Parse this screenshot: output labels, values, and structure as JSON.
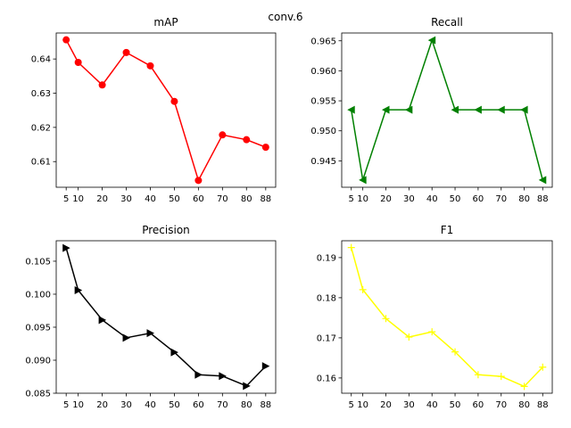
{
  "suptitle": "conv.6",
  "chart_data": [
    {
      "type": "line",
      "title": "mAP",
      "color": "#ff0000",
      "marker": "circle",
      "x": [
        5,
        10,
        20,
        30,
        40,
        50,
        60,
        70,
        80,
        88
      ],
      "values": [
        0.6456,
        0.639,
        0.6324,
        0.6419,
        0.638,
        0.6276,
        0.6045,
        0.6178,
        0.6164,
        0.6142
      ],
      "xticks": [
        5,
        10,
        20,
        30,
        40,
        50,
        60,
        70,
        80,
        88
      ],
      "xtick_labels": [
        "5",
        "10",
        "20",
        "30",
        "40",
        "50",
        "60",
        "70",
        "80",
        "88"
      ],
      "yticks": [
        0.61,
        0.62,
        0.63,
        0.64
      ],
      "ytick_labels": [
        "0.61",
        "0.62",
        "0.63",
        "0.64"
      ],
      "xlim": [
        0.85,
        92.15
      ],
      "ylim": [
        0.6025,
        0.6476
      ]
    },
    {
      "type": "line",
      "title": "Recall",
      "color": "#008000",
      "marker": "triangle-left",
      "x": [
        5,
        10,
        20,
        30,
        40,
        50,
        60,
        70,
        80,
        88
      ],
      "values": [
        0.9535,
        0.9418,
        0.9535,
        0.9535,
        0.9651,
        0.9535,
        0.9535,
        0.9535,
        0.9535,
        0.9418
      ],
      "xticks": [
        5,
        10,
        20,
        30,
        40,
        50,
        60,
        70,
        80,
        88
      ],
      "xtick_labels": [
        "5",
        "10",
        "20",
        "30",
        "40",
        "50",
        "60",
        "70",
        "80",
        "88"
      ],
      "yticks": [
        0.945,
        0.95,
        0.955,
        0.96,
        0.965
      ],
      "ytick_labels": [
        "0.945",
        "0.950",
        "0.955",
        "0.960",
        "0.965"
      ],
      "xlim": [
        0.85,
        92.15
      ],
      "ylim": [
        0.9406,
        0.9663
      ]
    },
    {
      "type": "line",
      "title": "Precision",
      "color": "#000000",
      "marker": "triangle-right",
      "x": [
        5,
        10,
        20,
        30,
        40,
        50,
        60,
        70,
        80,
        88
      ],
      "values": [
        0.107,
        0.1006,
        0.0961,
        0.0934,
        0.0941,
        0.0912,
        0.0878,
        0.0876,
        0.0861,
        0.0891
      ],
      "xticks": [
        5,
        10,
        20,
        30,
        40,
        50,
        60,
        70,
        80,
        88
      ],
      "xtick_labels": [
        "5",
        "10",
        "20",
        "30",
        "40",
        "50",
        "60",
        "70",
        "80",
        "88"
      ],
      "yticks": [
        0.085,
        0.09,
        0.095,
        0.1,
        0.105
      ],
      "ytick_labels": [
        "0.085",
        "0.090",
        "0.095",
        "0.100",
        "0.105"
      ],
      "xlim": [
        0.85,
        92.15
      ],
      "ylim": [
        0.085,
        0.1081
      ]
    },
    {
      "type": "line",
      "title": "F1",
      "color": "#ffff00",
      "marker": "plus",
      "x": [
        5,
        10,
        20,
        30,
        40,
        50,
        60,
        70,
        80,
        88
      ],
      "values": [
        0.1925,
        0.182,
        0.1748,
        0.1702,
        0.1715,
        0.1665,
        0.1608,
        0.1604,
        0.1579,
        0.1627
      ],
      "xticks": [
        5,
        10,
        20,
        30,
        40,
        50,
        60,
        70,
        80,
        88
      ],
      "xtick_labels": [
        "5",
        "10",
        "20",
        "30",
        "40",
        "50",
        "60",
        "70",
        "80",
        "88"
      ],
      "yticks": [
        0.16,
        0.17,
        0.18,
        0.19
      ],
      "ytick_labels": [
        "0.16",
        "0.17",
        "0.18",
        "0.19"
      ],
      "xlim": [
        0.85,
        92.15
      ],
      "ylim": [
        0.1562,
        0.1942
      ]
    }
  ]
}
